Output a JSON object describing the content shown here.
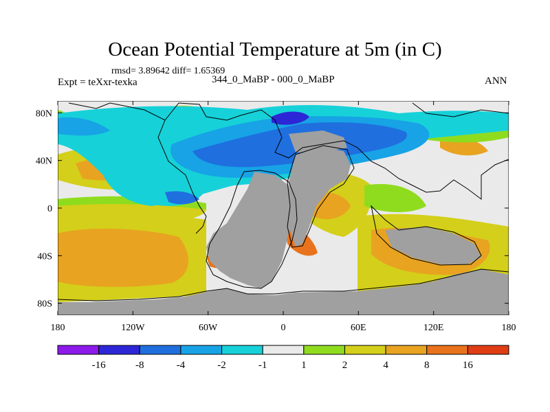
{
  "chart_data": {
    "type": "heatmap",
    "title": "Ocean Potential Temperature at 5m (in C)",
    "stats_line": "rmsd= 3.89642 diff= 1.65369",
    "experiment": "Expt = teXxr-texka",
    "comparison": "344_0_MaBP - 000_0_MaBP",
    "season": "ANN",
    "variable": "Ocean Potential Temperature difference",
    "units": "C",
    "x_axis": {
      "range": [
        -180,
        180
      ],
      "ticks": [
        -180,
        -120,
        -60,
        0,
        60,
        120,
        180
      ],
      "tick_labels": [
        "180",
        "120W",
        "60W",
        "0",
        "60E",
        "120E",
        "180"
      ]
    },
    "y_axis": {
      "range": [
        -90,
        90
      ],
      "ticks": [
        80,
        40,
        0,
        -40,
        -80
      ],
      "tick_labels": [
        "80N",
        "40N",
        "0",
        "40S",
        "80S"
      ]
    },
    "colorbar": {
      "levels": [
        "-16",
        "-8",
        "-4",
        "-2",
        "-1",
        "1",
        "2",
        "4",
        "8",
        "16"
      ],
      "colors": [
        "#8c1aeb",
        "#2d26d6",
        "#1f6fdf",
        "#17a3e6",
        "#17d1d9",
        "#eaeaea",
        "#8fdc1f",
        "#d4cf1a",
        "#e8a321",
        "#e8731c",
        "#e03d14"
      ]
    },
    "land_color": "#a0a0a0",
    "missing_color": "#eaeaea"
  }
}
